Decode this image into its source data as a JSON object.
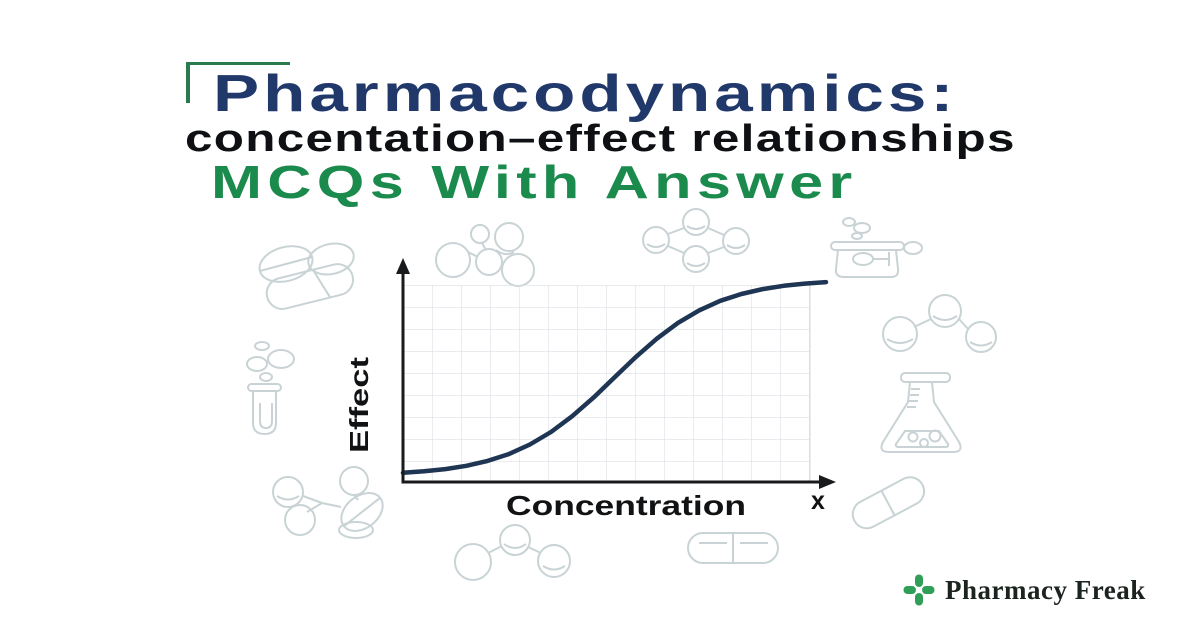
{
  "header": {
    "title": "Pharmacodynamics:",
    "subtitle": "concentation–effect relationships",
    "tagline": "MCQs With Answer"
  },
  "colors": {
    "title_navy": "#21386b",
    "subtitle_black": "#0e1013",
    "tagline_green": "#1b8a4d",
    "bracket_green": "#2b7a4d",
    "curve_navy": "#1f3554",
    "grid_gray": "#dcdfe4",
    "axis_black": "#191a1c",
    "background_icon_gray": "#c9d3d5",
    "brand_cross_green": "#2f9e57",
    "brand_text_dark": "#1c241f",
    "background": "#ffffff"
  },
  "chart_data": {
    "type": "line",
    "title": "",
    "xlabel": "Concentration",
    "ylabel": "Effect",
    "x_axis_end_label": "x",
    "x_tick_labels": [],
    "y_tick_labels": [],
    "axis_ranges": {
      "x": [
        0,
        1
      ],
      "y": [
        0,
        1
      ],
      "note": "axes carry no numeric ticks; values normalized 0-1"
    },
    "grid": true,
    "legend": false,
    "series": [
      {
        "name": "sigmoid concentration-effect curve",
        "x": [
          0.0,
          0.05,
          0.1,
          0.15,
          0.2,
          0.25,
          0.3,
          0.35,
          0.4,
          0.45,
          0.5,
          0.55,
          0.6,
          0.65,
          0.7,
          0.75,
          0.8,
          0.85,
          0.9,
          0.95,
          1.0
        ],
        "y": [
          0.045,
          0.052,
          0.063,
          0.079,
          0.103,
          0.136,
          0.183,
          0.244,
          0.321,
          0.411,
          0.51,
          0.609,
          0.699,
          0.776,
          0.837,
          0.884,
          0.917,
          0.941,
          0.957,
          0.968,
          0.975
        ]
      }
    ]
  },
  "footer": {
    "brand": "Pharmacy Freak"
  },
  "background_icons": [
    "round-tablet-with-score-line",
    "oval-pill",
    "capsule",
    "bubbles",
    "test-tube",
    "molecule-with-scored-tablet",
    "molecule-cluster",
    "diamond-molecule",
    "beaker-with-bubbles",
    "triatomic-molecule",
    "erlenmeyer-flask",
    "tilted-capsule",
    "horizontal-capsule",
    "triatomic-molecule-down"
  ]
}
